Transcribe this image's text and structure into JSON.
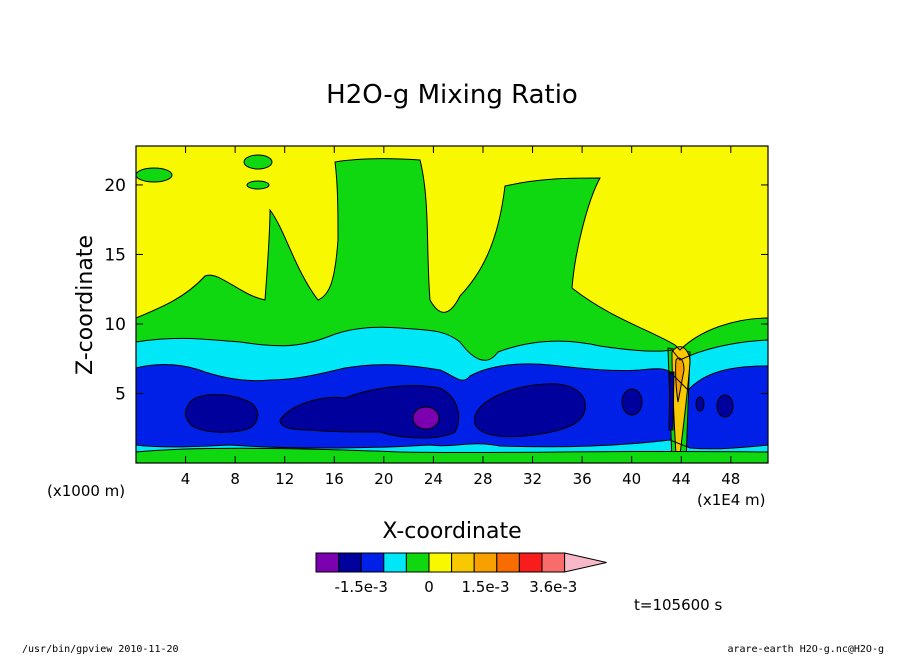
{
  "chart_data": {
    "type": "heatmap",
    "title": "H2O-g Mixing Ratio",
    "xlabel": "X-coordinate",
    "ylabel": "Z-coordinate",
    "x_unit_left": "(x1000 m)",
    "x_unit_right": "(x1E4 m)",
    "xlim": [
      0,
      51
    ],
    "ylim": [
      0,
      22.8
    ],
    "x_ticks": [
      "4",
      "8",
      "12",
      "16",
      "20",
      "24",
      "28",
      "32",
      "36",
      "40",
      "44",
      "48"
    ],
    "x_tick_values": [
      4,
      8,
      12,
      16,
      20,
      24,
      28,
      32,
      36,
      40,
      44,
      48
    ],
    "y_ticks": [
      "5",
      "10",
      "15",
      "20"
    ],
    "y_tick_values": [
      5,
      10,
      15,
      20
    ],
    "time_label": "t=105600 s",
    "colorbar": {
      "labels": [
        {
          "text": "-1.5e-3",
          "bin": 2
        },
        {
          "text": "0",
          "bin": 5
        },
        {
          "text": "1.5e-3",
          "bin": 7.5
        },
        {
          "text": "3.6e-3",
          "bin": 10.5
        }
      ],
      "colors": [
        "#7a00b0",
        "#00009c",
        "#0020e8",
        "#00e8f8",
        "#10d810",
        "#f8f800",
        "#f8c800",
        "#f8a000",
        "#f86c00",
        "#f81c1c",
        "#f86c6c",
        "#f8b8c8"
      ]
    },
    "fields": {
      "yellow": "#f8f800",
      "green": "#10d810",
      "cyan": "#00e8f8",
      "blue": "#0020e8",
      "navy": "#00009c",
      "purple": "#7a00b0",
      "orange": "#f8a000",
      "gold": "#f8c800"
    }
  },
  "footer": {
    "left": "/usr/bin/gpview  2010-11-20",
    "right": "arare-earth_H2O-g.nc@H2O-g"
  }
}
